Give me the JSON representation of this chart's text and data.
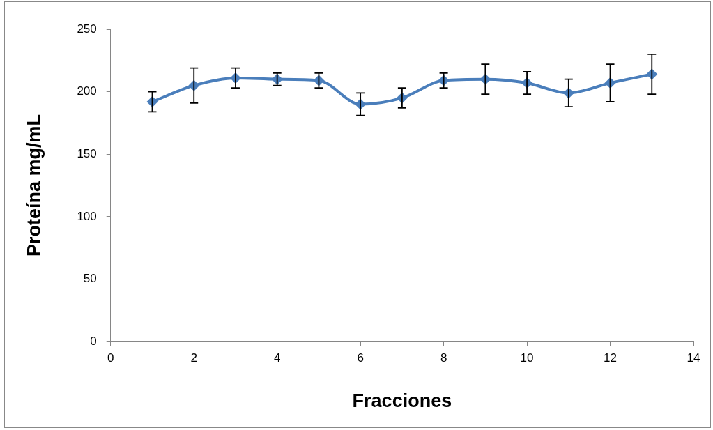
{
  "chart_data": {
    "type": "line",
    "xlabel": "Fracciones",
    "ylabel": "Proteína mg/mL",
    "x": [
      1,
      2,
      3,
      4,
      5,
      6,
      7,
      8,
      9,
      10,
      11,
      12,
      13
    ],
    "series": [
      {
        "color": "#4a7ebb",
        "values": [
          192,
          205,
          211,
          210,
          209,
          190,
          195,
          209,
          210,
          207,
          199,
          207,
          214
        ],
        "errors": [
          8,
          14,
          8,
          5,
          6,
          9,
          8,
          6,
          12,
          9,
          11,
          15,
          16
        ]
      }
    ],
    "xlim": [
      0,
      14
    ],
    "xticks": [
      0,
      2,
      4,
      6,
      8,
      10,
      12,
      14
    ],
    "ylim": [
      0,
      250
    ],
    "yticks": [
      0,
      50,
      100,
      150,
      200,
      250
    ],
    "grid": false,
    "legend": false,
    "marker": "diamond",
    "line_style": "solid"
  }
}
